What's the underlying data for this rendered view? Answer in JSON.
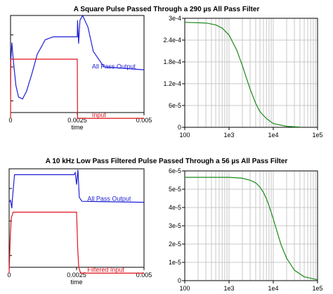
{
  "figure": {
    "titles": [
      "A Square Pulse Passed Through a 290 µs All Pass Filter",
      "A 10 kHz Low Pass Filtered Pulse Passed Through a 56 µs All Pass Filter"
    ]
  },
  "colors": {
    "output": "#1f1fd6",
    "input": "#e0141e",
    "delay": "#1a8a1a",
    "grid": "#c8c8c8",
    "axis": "#000000"
  },
  "chart_data": [
    {
      "type": "line",
      "title": "A Square Pulse Passed Through a 290 µs All Pass Filter",
      "xlabel": "time",
      "xlim": [
        0,
        0.005
      ],
      "x_ticks": [
        "0",
        "0.0025",
        "0.005"
      ],
      "grid": false,
      "annotations": [
        {
          "text": "All Pass Output",
          "series": "All Pass Output",
          "x": 0.00305
        },
        {
          "text": "Input",
          "series": "Input",
          "x": 0.00305
        }
      ],
      "series": [
        {
          "name": "All Pass Output",
          "color": "#1f1fd6",
          "points": [
            [
              0,
              0.49
            ],
            [
              5e-05,
              0.72
            ],
            [
              0.0001,
              0.55
            ],
            [
              0.0002,
              0.28
            ],
            [
              0.0003,
              0.16
            ],
            [
              0.00045,
              0.14
            ],
            [
              0.0006,
              0.22
            ],
            [
              0.0008,
              0.4
            ],
            [
              0.001,
              0.6
            ],
            [
              0.0013,
              0.75
            ],
            [
              0.0016,
              0.78
            ],
            [
              0.0025,
              0.78
            ],
            [
              0.00251,
              0.95
            ],
            [
              0.00255,
              0.71
            ],
            [
              0.0026,
              0.95
            ],
            [
              0.0027,
              1.0
            ],
            [
              0.0029,
              0.88
            ],
            [
              0.0031,
              0.63
            ],
            [
              0.0035,
              0.47
            ],
            [
              0.005,
              0.44
            ]
          ]
        },
        {
          "name": "Input",
          "color": "#e0141e",
          "points": [
            [
              0,
              -0.06
            ],
            [
              1e-05,
              0.55
            ],
            [
              0.0025,
              0.55
            ],
            [
              0.00251,
              -0.06
            ],
            [
              0.005,
              -0.06
            ]
          ]
        }
      ]
    },
    {
      "type": "line",
      "scale": "log-x",
      "xlim": [
        100,
        100000
      ],
      "ylim": [
        0,
        0.0003
      ],
      "x_ticks": [
        "100",
        "1e3",
        "1e4",
        "1e5"
      ],
      "y_ticks": [
        "0",
        "6e-5",
        "1.2e-4",
        "1.8e-4",
        "2.4e-4",
        "3e-4"
      ],
      "grid": true,
      "series": [
        {
          "name": "",
          "color": "#1a8a1a",
          "x": [
            100,
            300,
            500,
            700,
            1000,
            1500,
            2000,
            2500,
            3000,
            4000,
            5000,
            7000,
            10000,
            20000,
            40000
          ],
          "y": [
            0.000289,
            0.000287,
            0.000282,
            0.000273,
            0.000254,
            0.000212,
            0.00017,
            0.000134,
            0.000105,
            6.6e-05,
            4.3e-05,
            2.4e-05,
            1.02e-05,
            2.7e-06,
            7e-07
          ]
        }
      ]
    },
    {
      "type": "line",
      "title": "A 10 kHz Low Pass Filtered Pulse Passed Through a 56 µs All Pass Filter",
      "xlabel": "time",
      "xlim": [
        0,
        0.005
      ],
      "x_ticks": [
        "0",
        "0.0025",
        "0.005"
      ],
      "grid": false,
      "annotations": [
        {
          "text": "All Pass Output",
          "series": "All Pass Output",
          "x": 0.0029
        },
        {
          "text": "Filtered Input",
          "series": "Filtered Input",
          "x": 0.0029
        }
      ],
      "series": [
        {
          "name": "All Pass Output",
          "color": "#1f1fd6",
          "points": [
            [
              0,
              0.66
            ],
            [
              5e-05,
              0.68
            ],
            [
              0.0001,
              0.6
            ],
            [
              0.00012,
              0.69
            ],
            [
              0.0002,
              0.94
            ],
            [
              0.00025,
              0.94
            ],
            [
              0.0024,
              0.94
            ],
            [
              0.00245,
              0.96
            ],
            [
              0.0025,
              0.84
            ],
            [
              0.00255,
              0.99
            ],
            [
              0.0026,
              0.71
            ],
            [
              0.0027,
              0.67
            ],
            [
              0.005,
              0.66
            ]
          ]
        },
        {
          "name": "Filtered Input",
          "color": "#e0141e",
          "points": [
            [
              0,
              -0.06
            ],
            [
              4e-05,
              0.3
            ],
            [
              8e-05,
              0.5
            ],
            [
              0.00015,
              0.56
            ],
            [
              0.0025,
              0.56
            ],
            [
              0.00254,
              0.2
            ],
            [
              0.00258,
              0.0
            ],
            [
              0.00265,
              -0.06
            ],
            [
              0.005,
              -0.06
            ]
          ]
        }
      ]
    },
    {
      "type": "line",
      "scale": "log-x",
      "xlim": [
        100,
        100000
      ],
      "ylim": [
        0,
        6e-05
      ],
      "x_ticks": [
        "100",
        "1e3",
        "1e4",
        "1e5"
      ],
      "y_ticks": [
        "0",
        "1e-5",
        "2e-5",
        "3e-5",
        "4e-5",
        "5e-5",
        "6e-5"
      ],
      "grid": true,
      "series": [
        {
          "name": "",
          "color": "#1a8a1a",
          "x": [
            100,
            1000,
            2000,
            3000,
            4000,
            5000,
            6000,
            7000,
            8000,
            10000,
            12000,
            15000,
            20000,
            30000,
            50000,
            100000
          ],
          "y": [
            5.65e-05,
            5.65e-05,
            5.6e-05,
            5.49e-05,
            5.35e-05,
            5.12e-05,
            4.82e-05,
            4.48e-05,
            4.11e-05,
            3.37e-05,
            2.73e-05,
            1.96e-05,
            1.23e-05,
            5.7e-06,
            2.1e-06,
            5e-07
          ]
        }
      ]
    }
  ]
}
